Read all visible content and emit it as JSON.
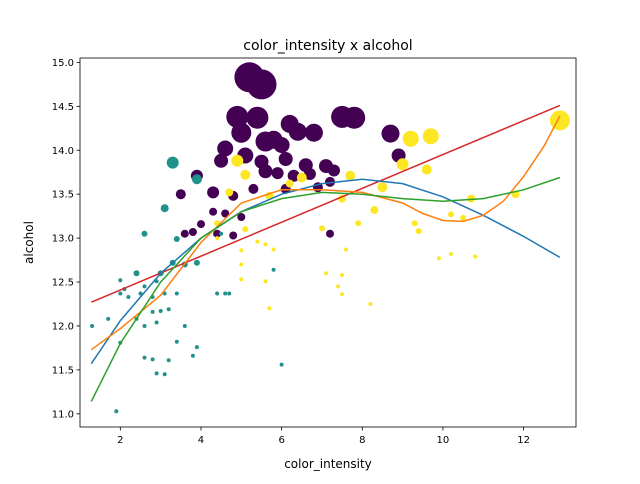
{
  "chart_data": {
    "type": "scatter",
    "title": "color_intensity x alcohol",
    "xlabel": "color_intensity",
    "ylabel": "alcohol",
    "xlim": [
      1.0,
      13.3
    ],
    "ylim": [
      10.85,
      15.05
    ],
    "xticks": [
      2,
      4,
      6,
      8,
      10,
      12
    ],
    "yticks": [
      11.0,
      11.5,
      12.0,
      12.5,
      13.0,
      13.5,
      14.0,
      14.5,
      15.0
    ],
    "xtick_labels": [
      "2",
      "4",
      "6",
      "8",
      "10",
      "12"
    ],
    "ytick_labels": [
      "11.0",
      "11.5",
      "12.0",
      "12.5",
      "13.0",
      "13.5",
      "14.0",
      "14.5",
      "15.0"
    ],
    "grid": false,
    "legend": false,
    "class_colors": [
      "#440154",
      "#21918c",
      "#fde725"
    ],
    "points": [
      [
        5.2,
        14.83,
        0,
        15
      ],
      [
        5.5,
        14.75,
        0,
        15
      ],
      [
        4.9,
        14.38,
        0,
        11
      ],
      [
        5.4,
        14.37,
        0,
        11
      ],
      [
        5.0,
        14.2,
        0,
        10
      ],
      [
        5.6,
        14.1,
        0,
        10
      ],
      [
        5.8,
        14.12,
        0,
        9
      ],
      [
        6.2,
        14.3,
        0,
        9
      ],
      [
        6.4,
        14.21,
        0,
        9
      ],
      [
        6.8,
        14.2,
        0,
        9
      ],
      [
        7.5,
        14.38,
        0,
        11
      ],
      [
        7.8,
        14.37,
        0,
        11
      ],
      [
        8.7,
        14.19,
        0,
        9
      ],
      [
        4.6,
        14.02,
        0,
        8
      ],
      [
        5.1,
        13.94,
        0,
        8
      ],
      [
        6.0,
        14.06,
        0,
        8
      ],
      [
        5.5,
        13.87,
        0,
        7
      ],
      [
        6.1,
        13.9,
        0,
        7
      ],
      [
        6.6,
        13.83,
        0,
        7
      ],
      [
        7.1,
        13.82,
        0,
        7
      ],
      [
        5.6,
        13.76,
        0,
        7
      ],
      [
        5.9,
        13.74,
        0,
        6
      ],
      [
        6.3,
        13.71,
        0,
        6
      ],
      [
        6.7,
        13.73,
        0,
        6
      ],
      [
        7.3,
        13.77,
        0,
        6
      ],
      [
        4.5,
        13.88,
        0,
        7
      ],
      [
        8.9,
        13.94,
        0,
        7
      ],
      [
        3.9,
        13.71,
        0,
        6
      ],
      [
        3.5,
        13.5,
        0,
        5
      ],
      [
        4.3,
        13.52,
        0,
        6
      ],
      [
        4.8,
        13.48,
        0,
        5
      ],
      [
        5.3,
        13.56,
        0,
        5
      ],
      [
        6.1,
        13.56,
        0,
        5
      ],
      [
        6.9,
        13.58,
        0,
        5
      ],
      [
        7.2,
        13.64,
        0,
        5
      ],
      [
        4.3,
        13.3,
        0,
        4
      ],
      [
        4.6,
        13.28,
        0,
        4
      ],
      [
        5.0,
        13.24,
        0,
        4
      ],
      [
        4.0,
        13.16,
        0,
        4
      ],
      [
        3.6,
        13.05,
        0,
        4
      ],
      [
        3.8,
        13.07,
        0,
        4
      ],
      [
        4.4,
        13.05,
        0,
        4
      ],
      [
        4.8,
        13.03,
        0,
        4
      ],
      [
        7.2,
        13.05,
        0,
        4
      ],
      [
        3.3,
        13.86,
        1,
        6
      ],
      [
        3.9,
        13.67,
        1,
        5
      ],
      [
        3.1,
        13.34,
        1,
        4
      ],
      [
        3.4,
        12.99,
        1,
        3
      ],
      [
        2.6,
        13.05,
        1,
        3
      ],
      [
        3.3,
        12.72,
        1,
        3
      ],
      [
        3.0,
        12.6,
        1,
        3
      ],
      [
        3.6,
        12.7,
        1,
        3
      ],
      [
        3.9,
        12.72,
        1,
        3
      ],
      [
        2.4,
        12.6,
        1,
        3
      ],
      [
        2.9,
        12.51,
        1,
        2
      ],
      [
        2.6,
        12.45,
        1,
        2
      ],
      [
        2.0,
        12.52,
        1,
        2
      ],
      [
        2.1,
        12.42,
        1,
        2
      ],
      [
        2.0,
        12.37,
        1,
        2
      ],
      [
        2.2,
        12.33,
        1,
        2
      ],
      [
        2.5,
        12.37,
        1,
        2
      ],
      [
        3.1,
        12.37,
        1,
        2
      ],
      [
        2.8,
        12.33,
        1,
        2
      ],
      [
        3.4,
        12.37,
        1,
        2
      ],
      [
        2.8,
        12.16,
        1,
        2
      ],
      [
        3.2,
        12.19,
        1,
        2
      ],
      [
        2.4,
        12.08,
        1,
        2
      ],
      [
        2.6,
        12.0,
        1,
        2
      ],
      [
        2.9,
        12.04,
        1,
        2
      ],
      [
        3.6,
        12.0,
        1,
        2
      ],
      [
        3.4,
        11.82,
        1,
        2
      ],
      [
        2.0,
        11.81,
        1,
        2
      ],
      [
        2.6,
        11.64,
        1,
        2
      ],
      [
        2.8,
        11.62,
        1,
        2
      ],
      [
        3.2,
        11.61,
        1,
        2
      ],
      [
        3.8,
        11.66,
        1,
        2
      ],
      [
        2.9,
        11.46,
        1,
        2
      ],
      [
        3.1,
        11.45,
        1,
        2
      ],
      [
        1.3,
        12.0,
        1,
        2
      ],
      [
        1.9,
        11.03,
        1,
        2
      ],
      [
        4.4,
        12.37,
        1,
        2
      ],
      [
        4.6,
        12.37,
        1,
        2
      ],
      [
        4.7,
        12.37,
        1,
        2
      ],
      [
        5.8,
        12.64,
        1,
        2
      ],
      [
        6.0,
        11.56,
        1,
        2
      ],
      [
        4.5,
        13.05,
        1,
        2
      ],
      [
        1.7,
        12.08,
        1,
        2
      ],
      [
        3.0,
        12.17,
        1,
        2
      ],
      [
        3.9,
        11.76,
        1,
        2
      ],
      [
        12.9,
        14.34,
        2,
        10
      ],
      [
        9.7,
        14.16,
        2,
        8
      ],
      [
        9.2,
        14.13,
        2,
        8
      ],
      [
        9.0,
        13.84,
        2,
        6
      ],
      [
        9.6,
        13.78,
        2,
        5
      ],
      [
        4.9,
        13.88,
        2,
        6
      ],
      [
        7.7,
        13.71,
        2,
        5
      ],
      [
        6.5,
        13.69,
        2,
        5
      ],
      [
        5.1,
        13.72,
        2,
        5
      ],
      [
        8.5,
        13.58,
        2,
        5
      ],
      [
        6.2,
        13.62,
        2,
        4
      ],
      [
        5.7,
        13.48,
        2,
        4
      ],
      [
        4.7,
        13.52,
        2,
        4
      ],
      [
        7.5,
        13.45,
        2,
        4
      ],
      [
        8.3,
        13.32,
        2,
        4
      ],
      [
        10.7,
        13.45,
        2,
        4
      ],
      [
        11.8,
        13.5,
        2,
        4
      ],
      [
        4.4,
        13.17,
        2,
        3
      ],
      [
        5.1,
        13.1,
        2,
        3
      ],
      [
        7.0,
        13.11,
        2,
        3
      ],
      [
        7.9,
        13.17,
        2,
        3
      ],
      [
        10.2,
        13.27,
        2,
        3
      ],
      [
        10.5,
        13.23,
        2,
        3
      ],
      [
        9.3,
        13.17,
        2,
        3
      ],
      [
        9.4,
        13.08,
        2,
        3
      ],
      [
        5.4,
        12.96,
        2,
        2
      ],
      [
        5.6,
        12.93,
        2,
        2
      ],
      [
        5.8,
        12.87,
        2,
        2
      ],
      [
        4.4,
        13.0,
        2,
        2
      ],
      [
        5.0,
        12.86,
        2,
        2
      ],
      [
        7.6,
        12.87,
        2,
        2
      ],
      [
        5.0,
        12.7,
        2,
        2
      ],
      [
        5.0,
        12.53,
        2,
        2
      ],
      [
        5.6,
        12.51,
        2,
        2
      ],
      [
        7.1,
        12.6,
        2,
        2
      ],
      [
        7.5,
        12.58,
        2,
        2
      ],
      [
        7.4,
        12.45,
        2,
        2
      ],
      [
        7.5,
        12.36,
        2,
        2
      ],
      [
        5.7,
        12.2,
        2,
        2
      ],
      [
        8.2,
        12.25,
        2,
        2
      ],
      [
        9.9,
        12.77,
        2,
        2
      ],
      [
        10.2,
        12.82,
        2,
        2
      ],
      [
        10.8,
        12.79,
        2,
        2
      ]
    ],
    "series": [
      {
        "color": "#d62728",
        "x": [
          1.28,
          12.9
        ],
        "y": [
          12.27,
          14.51
        ]
      },
      {
        "color": "#1f77b4",
        "x": [
          1.28,
          2.0,
          3.0,
          4.0,
          5.0,
          6.0,
          7.0,
          8.0,
          9.0,
          10.0,
          11.0,
          12.0,
          12.9
        ],
        "y": [
          11.57,
          12.06,
          12.6,
          13.0,
          13.3,
          13.5,
          13.62,
          13.67,
          13.62,
          13.47,
          13.26,
          13.02,
          12.78
        ]
      },
      {
        "color": "#ff7f0e",
        "x": [
          1.28,
          2.0,
          3.0,
          4.0,
          5.0,
          6.0,
          7.0,
          8.0,
          9.0,
          9.5,
          10.0,
          10.5,
          11.0,
          11.5,
          12.0,
          12.5,
          12.9
        ],
        "y": [
          11.73,
          11.97,
          12.35,
          12.95,
          13.4,
          13.55,
          13.55,
          13.52,
          13.4,
          13.28,
          13.2,
          13.19,
          13.26,
          13.42,
          13.7,
          14.04,
          14.39
        ]
      },
      {
        "color": "#2ca02c",
        "x": [
          1.28,
          2.0,
          3.0,
          4.0,
          5.0,
          6.0,
          7.0,
          8.0,
          9.0,
          10.0,
          11.0,
          12.0,
          12.9
        ],
        "y": [
          11.14,
          11.8,
          12.5,
          13.0,
          13.3,
          13.45,
          13.52,
          13.5,
          13.45,
          13.42,
          13.45,
          13.55,
          13.69
        ]
      }
    ]
  }
}
